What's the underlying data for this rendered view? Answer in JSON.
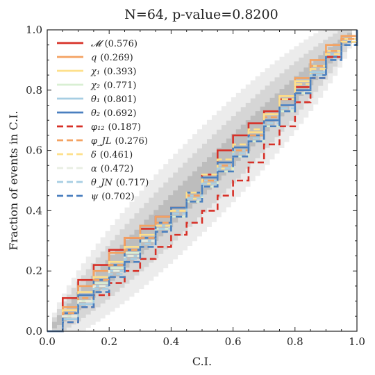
{
  "chart_data": {
    "type": "line",
    "title": "N=64, p-value=0.8200",
    "xlabel": "C.I.",
    "ylabel": "Fraction of events in C.I.",
    "xlim": [
      0,
      1
    ],
    "ylim": [
      0,
      1
    ],
    "xticks": [
      "0.0",
      "0.2",
      "0.4",
      "0.6",
      "0.8",
      "1.0"
    ],
    "yticks": [
      "0.0",
      "0.2",
      "0.4",
      "0.6",
      "0.8",
      "1.0"
    ],
    "grid": false,
    "legend_position": "top-left",
    "credible_bands": {
      "n_events": 64,
      "levels": [
        0.68,
        0.95,
        0.997
      ],
      "colors": [
        "#bdbdbd",
        "#d6d6d6",
        "#ececec"
      ]
    },
    "series": [
      {
        "name": "$\\mathcal{M}$ (0.576)",
        "label": "𝓜",
        "value": "(0.576)",
        "color": "#d73027",
        "dash": "solid",
        "x": [
          0,
          0.05,
          0.1,
          0.15,
          0.2,
          0.25,
          0.3,
          0.35,
          0.4,
          0.45,
          0.5,
          0.55,
          0.6,
          0.65,
          0.7,
          0.75,
          0.8,
          0.85,
          0.9,
          0.95,
          1
        ],
        "y": [
          0,
          0.11,
          0.17,
          0.22,
          0.27,
          0.31,
          0.34,
          0.38,
          0.41,
          0.45,
          0.52,
          0.6,
          0.65,
          0.69,
          0.73,
          0.77,
          0.81,
          0.86,
          0.92,
          0.97,
          1
        ]
      },
      {
        "name": "$q$ (0.269)",
        "label": "q",
        "value": "(0.269)",
        "color": "#f4a261",
        "dash": "solid",
        "x": [
          0,
          0.05,
          0.1,
          0.15,
          0.2,
          0.25,
          0.3,
          0.35,
          0.4,
          0.45,
          0.5,
          0.55,
          0.6,
          0.65,
          0.7,
          0.75,
          0.8,
          0.85,
          0.9,
          0.95,
          1
        ],
        "y": [
          0,
          0.08,
          0.15,
          0.2,
          0.26,
          0.31,
          0.35,
          0.38,
          0.41,
          0.45,
          0.5,
          0.55,
          0.6,
          0.66,
          0.72,
          0.78,
          0.84,
          0.9,
          0.95,
          0.98,
          1
        ]
      },
      {
        "name": "$\\chi_1$ (0.393)",
        "label": "χ₁",
        "value": "(0.393)",
        "color": "#fee08b",
        "dash": "solid",
        "x": [
          0,
          0.05,
          0.1,
          0.15,
          0.2,
          0.25,
          0.3,
          0.35,
          0.4,
          0.45,
          0.5,
          0.55,
          0.6,
          0.65,
          0.7,
          0.75,
          0.8,
          0.85,
          0.9,
          0.95,
          1
        ],
        "y": [
          0,
          0.07,
          0.13,
          0.18,
          0.23,
          0.28,
          0.32,
          0.36,
          0.4,
          0.44,
          0.49,
          0.54,
          0.6,
          0.66,
          0.72,
          0.78,
          0.83,
          0.88,
          0.93,
          0.97,
          1
        ]
      },
      {
        "name": "$\\chi_2$ (0.771)",
        "label": "χ₂",
        "value": "(0.771)",
        "color": "#d9efd3",
        "dash": "solid",
        "x": [
          0,
          0.05,
          0.1,
          0.15,
          0.2,
          0.25,
          0.3,
          0.35,
          0.4,
          0.45,
          0.5,
          0.55,
          0.6,
          0.65,
          0.7,
          0.75,
          0.8,
          0.85,
          0.9,
          0.95,
          1
        ],
        "y": [
          0,
          0.05,
          0.1,
          0.16,
          0.21,
          0.26,
          0.3,
          0.34,
          0.38,
          0.43,
          0.48,
          0.53,
          0.58,
          0.63,
          0.68,
          0.73,
          0.79,
          0.85,
          0.91,
          0.96,
          1
        ]
      },
      {
        "name": "$\\theta_1$ (0.801)",
        "label": "θ₁",
        "value": "(0.801)",
        "color": "#a6cee3",
        "dash": "solid",
        "x": [
          0,
          0.05,
          0.1,
          0.15,
          0.2,
          0.25,
          0.3,
          0.35,
          0.4,
          0.45,
          0.5,
          0.55,
          0.6,
          0.65,
          0.7,
          0.75,
          0.8,
          0.85,
          0.9,
          0.95,
          1
        ],
        "y": [
          0,
          0.04,
          0.09,
          0.15,
          0.2,
          0.25,
          0.3,
          0.35,
          0.4,
          0.45,
          0.5,
          0.55,
          0.6,
          0.65,
          0.7,
          0.75,
          0.8,
          0.86,
          0.92,
          0.96,
          1
        ]
      },
      {
        "name": "$\\theta_2$ (0.692)",
        "label": "θ₂",
        "value": "(0.692)",
        "color": "#4a7fbf",
        "dash": "solid",
        "x": [
          0,
          0.05,
          0.1,
          0.15,
          0.2,
          0.25,
          0.3,
          0.35,
          0.4,
          0.45,
          0.5,
          0.55,
          0.6,
          0.65,
          0.7,
          0.75,
          0.8,
          0.85,
          0.9,
          0.95,
          1
        ],
        "y": [
          0,
          0.06,
          0.12,
          0.17,
          0.22,
          0.27,
          0.31,
          0.36,
          0.41,
          0.46,
          0.51,
          0.56,
          0.61,
          0.65,
          0.7,
          0.75,
          0.8,
          0.85,
          0.91,
          0.96,
          1
        ]
      },
      {
        "name": "$\\phi_{12}$ (0.187)",
        "label": "φ₁₂",
        "value": "(0.187)",
        "color": "#d73027",
        "dash": "dashed",
        "x": [
          0,
          0.05,
          0.1,
          0.15,
          0.2,
          0.25,
          0.3,
          0.35,
          0.4,
          0.45,
          0.5,
          0.55,
          0.6,
          0.65,
          0.7,
          0.75,
          0.8,
          0.85,
          0.9,
          0.95,
          1
        ],
        "y": [
          0,
          0.03,
          0.08,
          0.12,
          0.16,
          0.2,
          0.24,
          0.28,
          0.32,
          0.36,
          0.4,
          0.45,
          0.5,
          0.56,
          0.62,
          0.68,
          0.76,
          0.84,
          0.91,
          0.96,
          1
        ]
      },
      {
        "name": "$\\phi_{JL}$ (0.276)",
        "label": "φ_JL",
        "value": "(0.276)",
        "color": "#f4a261",
        "dash": "dashed",
        "x": [
          0,
          0.05,
          0.1,
          0.15,
          0.2,
          0.25,
          0.3,
          0.35,
          0.4,
          0.45,
          0.5,
          0.55,
          0.6,
          0.65,
          0.7,
          0.75,
          0.8,
          0.85,
          0.9,
          0.95,
          1
        ],
        "y": [
          0,
          0.06,
          0.11,
          0.17,
          0.22,
          0.27,
          0.31,
          0.36,
          0.4,
          0.45,
          0.5,
          0.55,
          0.6,
          0.65,
          0.71,
          0.77,
          0.82,
          0.88,
          0.93,
          0.97,
          1
        ]
      },
      {
        "name": "$\\delta$ (0.461)",
        "label": "δ",
        "value": "(0.461)",
        "color": "#fee08b",
        "dash": "dashed",
        "x": [
          0,
          0.05,
          0.1,
          0.15,
          0.2,
          0.25,
          0.3,
          0.35,
          0.4,
          0.45,
          0.5,
          0.55,
          0.6,
          0.65,
          0.7,
          0.75,
          0.8,
          0.85,
          0.9,
          0.95,
          1
        ],
        "y": [
          0,
          0.05,
          0.1,
          0.15,
          0.2,
          0.25,
          0.3,
          0.35,
          0.4,
          0.46,
          0.52,
          0.57,
          0.62,
          0.67,
          0.72,
          0.77,
          0.82,
          0.87,
          0.92,
          0.96,
          1
        ]
      },
      {
        "name": "$\\alpha$ (0.472)",
        "label": "α",
        "value": "(0.472)",
        "color": "#e8eee2",
        "dash": "dashed",
        "x": [
          0,
          0.05,
          0.1,
          0.15,
          0.2,
          0.25,
          0.3,
          0.35,
          0.4,
          0.45,
          0.5,
          0.55,
          0.6,
          0.65,
          0.7,
          0.75,
          0.8,
          0.85,
          0.9,
          0.95,
          1
        ],
        "y": [
          0,
          0.05,
          0.1,
          0.15,
          0.2,
          0.25,
          0.3,
          0.34,
          0.39,
          0.44,
          0.49,
          0.54,
          0.59,
          0.64,
          0.69,
          0.74,
          0.79,
          0.85,
          0.9,
          0.95,
          1
        ]
      },
      {
        "name": "$\\theta_{JN}$ (0.717)",
        "label": "θ_JN",
        "value": "(0.717)",
        "color": "#a6cee3",
        "dash": "dashed",
        "x": [
          0,
          0.05,
          0.1,
          0.15,
          0.2,
          0.25,
          0.3,
          0.35,
          0.4,
          0.45,
          0.5,
          0.55,
          0.6,
          0.65,
          0.7,
          0.75,
          0.8,
          0.85,
          0.9,
          0.95,
          1
        ],
        "y": [
          0,
          0.04,
          0.09,
          0.14,
          0.19,
          0.24,
          0.29,
          0.34,
          0.39,
          0.44,
          0.49,
          0.54,
          0.59,
          0.64,
          0.69,
          0.74,
          0.79,
          0.85,
          0.9,
          0.95,
          1
        ]
      },
      {
        "name": "$\\psi$ (0.702)",
        "label": "ψ",
        "value": "(0.702)",
        "color": "#4a7fbf",
        "dash": "dashed",
        "x": [
          0,
          0.05,
          0.1,
          0.15,
          0.2,
          0.25,
          0.3,
          0.35,
          0.4,
          0.45,
          0.5,
          0.55,
          0.6,
          0.65,
          0.7,
          0.75,
          0.8,
          0.85,
          0.9,
          0.95,
          1
        ],
        "y": [
          0,
          0.03,
          0.08,
          0.13,
          0.18,
          0.23,
          0.28,
          0.33,
          0.38,
          0.43,
          0.48,
          0.53,
          0.58,
          0.63,
          0.68,
          0.73,
          0.79,
          0.84,
          0.9,
          0.95,
          1
        ]
      }
    ]
  }
}
